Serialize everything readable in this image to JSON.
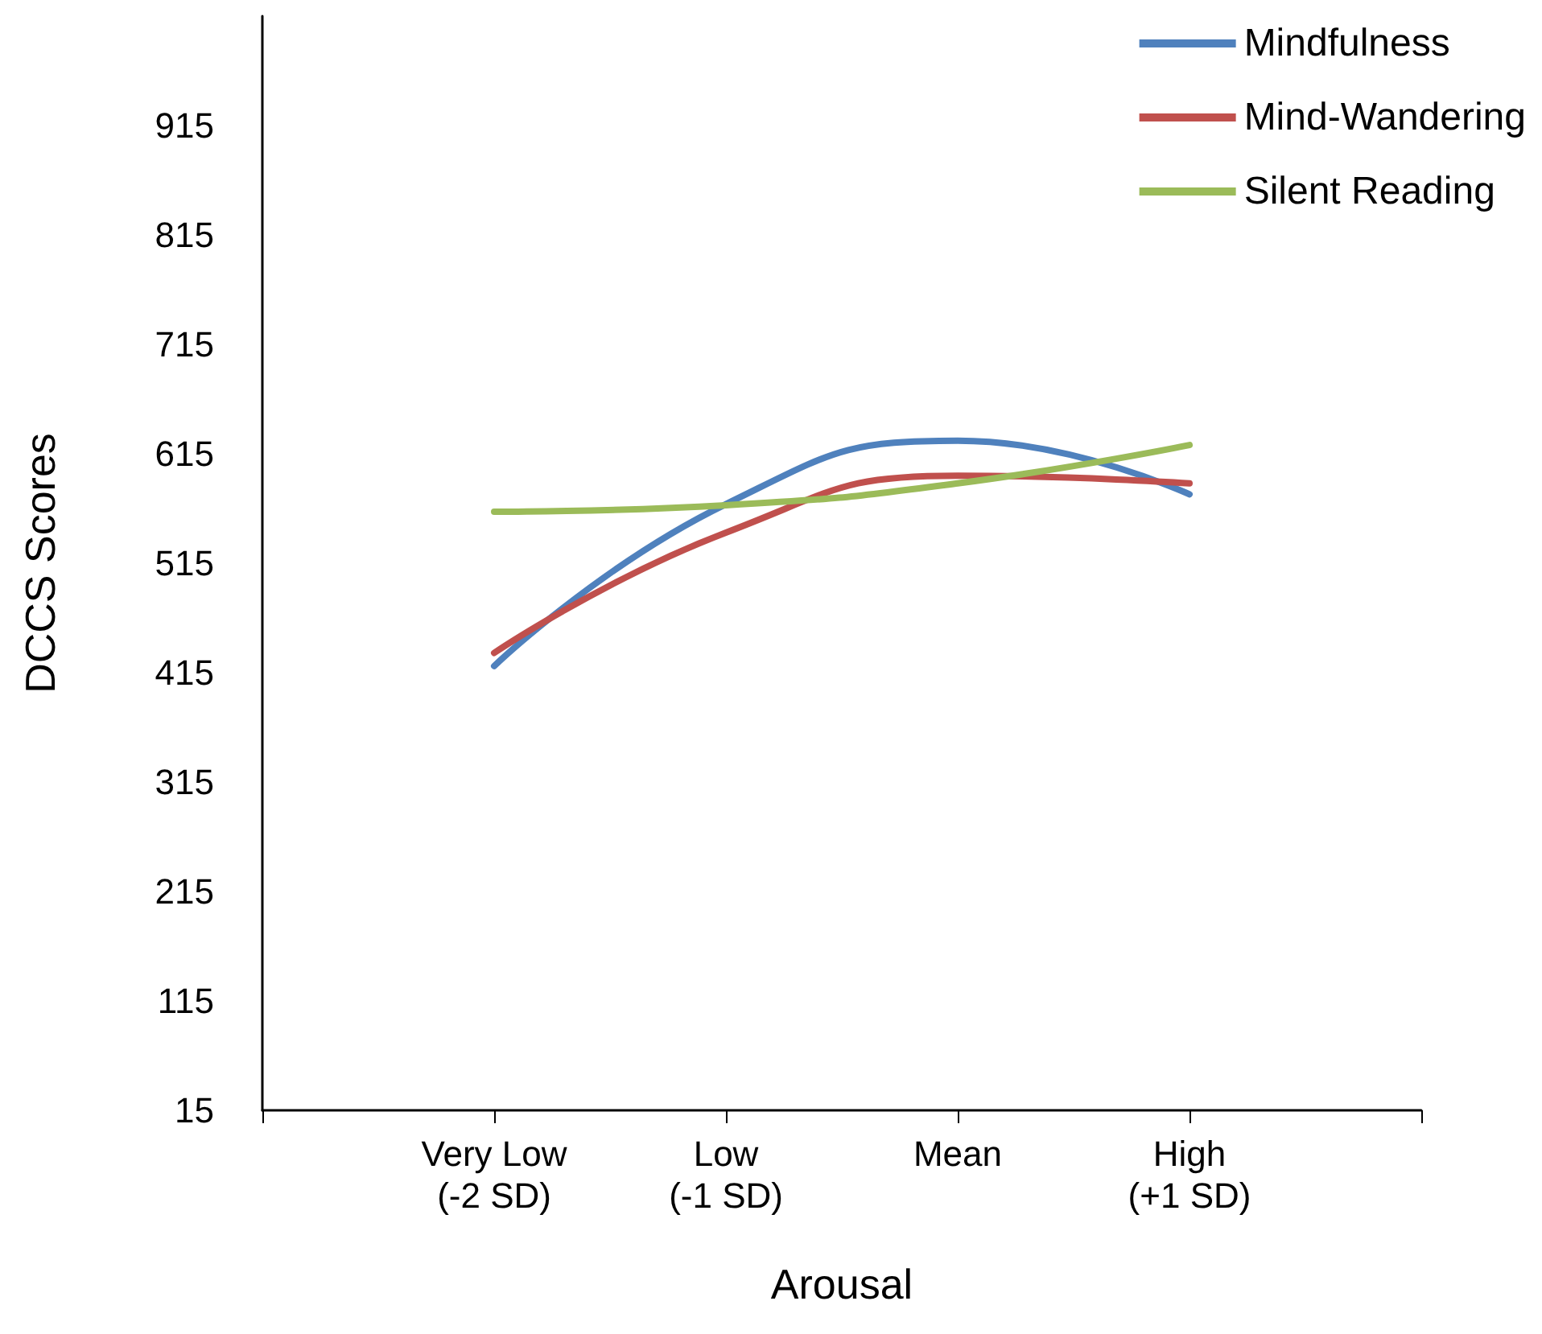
{
  "chart_data": {
    "type": "line",
    "xlabel": "Arousal",
    "ylabel": "DCCS Scores",
    "categories": [
      null,
      "Very Low\n(-2 SD)",
      "Low\n(-1 SD)",
      "Mean",
      "High\n(+1 SD)",
      null
    ],
    "series": [
      {
        "name": "Mindfulness",
        "color": "#4f81bd",
        "values": [
          null,
          421,
          569,
          627,
          578,
          null
        ]
      },
      {
        "name": "Mind-Wandering",
        "color": "#c0504d",
        "values": [
          null,
          433,
          543,
          595,
          588,
          null
        ]
      },
      {
        "name": "Silent Reading",
        "color": "#9bbb59",
        "values": [
          null,
          562,
          568,
          588,
          623,
          null
        ]
      }
    ],
    "ylim": [
      15,
      1015
    ],
    "yticks": [
      15,
      115,
      215,
      315,
      415,
      515,
      615,
      715,
      815,
      915
    ],
    "grid": false,
    "legend": "top right",
    "marker": "none",
    "line_style": "solid"
  }
}
